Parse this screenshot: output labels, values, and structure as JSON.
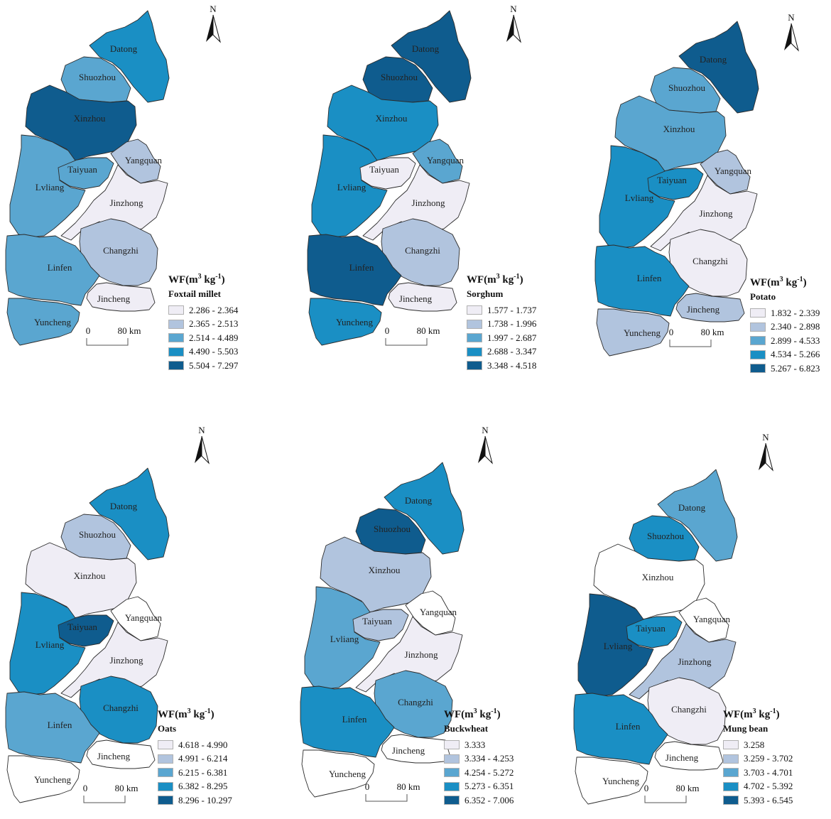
{
  "unit_label": {
    "prefix": "WF(m",
    "sup1": "3",
    "mid": " kg",
    "sup2": "-1",
    "suffix": ")"
  },
  "scale_bar": {
    "zero": "0",
    "distance": "80 km"
  },
  "north_label": "N",
  "colors": {
    "no_data": "#ffffff",
    "class_1": "#efedf5",
    "class_2": "#b1c4de",
    "class_3": "#5aa6d0",
    "class_4": "#1a8fc4",
    "class_5": "#0f5c8e"
  },
  "maps": [
    {
      "crop": "Foxtail millet",
      "legend": [
        "2.286 - 2.364",
        "2.365 - 2.513",
        "2.514 - 4.489",
        "4.490 - 5.503",
        "5.504 - 7.297"
      ],
      "regions": {
        "Datong": 4,
        "Shuozhou": 3,
        "Xinzhou": 5,
        "Taiyuan": 3,
        "Yangquan": 2,
        "Lvliang": 3,
        "Jinzhong": 1,
        "Changzhi": 2,
        "Linfen": 3,
        "Jincheng": 1,
        "Yuncheng": 3
      }
    },
    {
      "crop": "Sorghum",
      "legend": [
        "1.577 - 1.737",
        "1.738 - 1.996",
        "1.997 - 2.687",
        "2.688 - 3.347",
        "3.348 - 4.518"
      ],
      "regions": {
        "Datong": 5,
        "Shuozhou": 5,
        "Xinzhou": 4,
        "Taiyuan": 1,
        "Yangquan": 3,
        "Lvliang": 4,
        "Jinzhong": 1,
        "Changzhi": 2,
        "Linfen": 5,
        "Jincheng": 1,
        "Yuncheng": 4
      }
    },
    {
      "crop": "Potato",
      "legend": [
        "1.832 - 2.339",
        "2.340 - 2.898",
        "2.899 - 4.533",
        "4.534 - 5.266",
        "5.267 - 6.823"
      ],
      "regions": {
        "Datong": 5,
        "Shuozhou": 3,
        "Xinzhou": 3,
        "Taiyuan": 4,
        "Yangquan": 2,
        "Lvliang": 4,
        "Jinzhong": 1,
        "Changzhi": 1,
        "Linfen": 4,
        "Jincheng": 2,
        "Yuncheng": 2
      }
    },
    {
      "crop": "Oats",
      "legend": [
        "4.618 - 4.990",
        "4.991 - 6.214",
        "6.215 - 6.381",
        "6.382 - 8.295",
        "8.296 - 10.297"
      ],
      "regions": {
        "Datong": 4,
        "Shuozhou": 2,
        "Xinzhou": 1,
        "Taiyuan": 5,
        "Yangquan": 0,
        "Lvliang": 4,
        "Jinzhong": 1,
        "Changzhi": 4,
        "Linfen": 3,
        "Jincheng": 0,
        "Yuncheng": 0
      }
    },
    {
      "crop": "Buckwheat",
      "legend": [
        "3.333",
        "3.334 - 4.253",
        "4.254 - 5.272",
        "5.273 - 6.351",
        "6.352 - 7.006"
      ],
      "regions": {
        "Datong": 4,
        "Shuozhou": 5,
        "Xinzhou": 2,
        "Taiyuan": 2,
        "Yangquan": 0,
        "Lvliang": 3,
        "Jinzhong": 1,
        "Changzhi": 3,
        "Linfen": 4,
        "Jincheng": 0,
        "Yuncheng": 0
      }
    },
    {
      "crop": "Mung bean",
      "legend": [
        "3.258",
        "3.259 - 3.702",
        "3.703 - 4.701",
        "4.702 - 5.392",
        "5.393 - 6.545"
      ],
      "regions": {
        "Datong": 3,
        "Shuozhou": 4,
        "Xinzhou": 0,
        "Taiyuan": 4,
        "Yangquan": 0,
        "Lvliang": 5,
        "Jinzhong": 2,
        "Changzhi": 1,
        "Linfen": 4,
        "Jincheng": 0,
        "Yuncheng": 0
      }
    }
  ]
}
